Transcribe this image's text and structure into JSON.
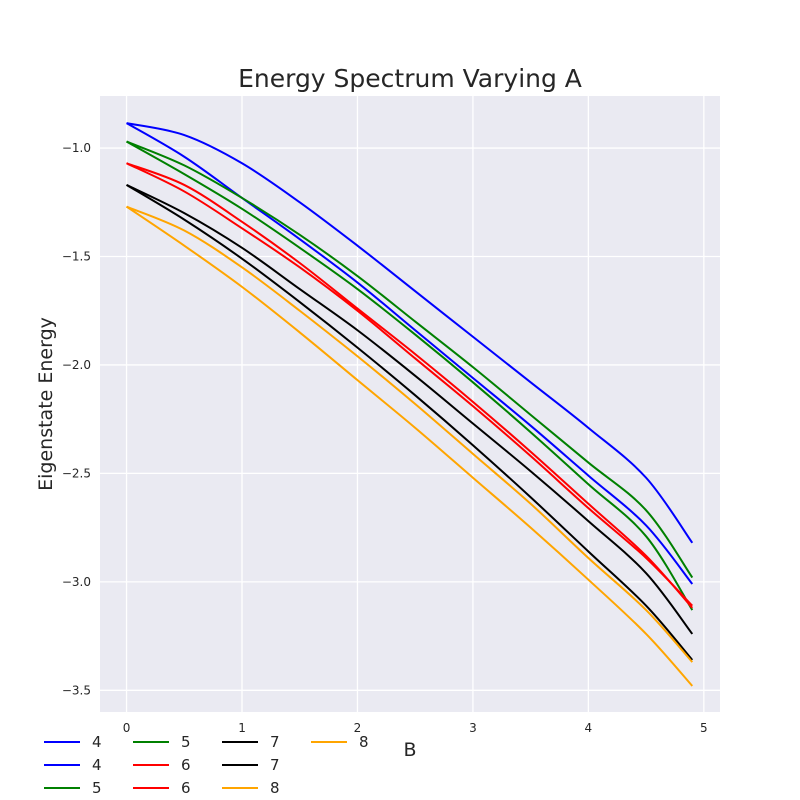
{
  "chart_data": {
    "type": "line",
    "title": "Energy Spectrum Varying A",
    "xlabel": "B",
    "ylabel": "Eigenstate Energy",
    "xlim": [
      -0.23,
      5.14
    ],
    "ylim": [
      -3.6,
      -0.76
    ],
    "xticks": [
      0,
      1,
      2,
      3,
      4,
      5
    ],
    "yticks": [
      -1.0,
      -1.5,
      -2.0,
      -2.5,
      -3.0,
      -3.5
    ],
    "xtick_labels": [
      "0",
      "1",
      "2",
      "3",
      "4",
      "5"
    ],
    "ytick_labels": [
      "−1.0",
      "−1.5",
      "−2.0",
      "−2.5",
      "−3.0",
      "−3.5"
    ],
    "grid": true,
    "legend_placement": "below-left",
    "legend_columns": 4,
    "x": [
      0,
      0.5,
      1,
      1.5,
      2,
      2.5,
      3,
      3.5,
      4,
      4.5,
      4.9
    ],
    "series": [
      {
        "name": "4",
        "color": "#0000ff",
        "values": [
          -0.885,
          -0.94,
          -1.07,
          -1.25,
          -1.45,
          -1.66,
          -1.87,
          -2.08,
          -2.29,
          -2.52,
          -2.82
        ]
      },
      {
        "name": "4",
        "color": "#0000ff",
        "values": [
          -0.885,
          -1.04,
          -1.23,
          -1.42,
          -1.62,
          -1.84,
          -2.06,
          -2.28,
          -2.51,
          -2.74,
          -3.01
        ]
      },
      {
        "name": "5",
        "color": "#008000",
        "values": [
          -0.97,
          -1.08,
          -1.23,
          -1.4,
          -1.59,
          -1.8,
          -2.01,
          -2.23,
          -2.45,
          -2.67,
          -2.98
        ]
      },
      {
        "name": "5",
        "color": "#008000",
        "values": [
          -0.97,
          -1.12,
          -1.28,
          -1.46,
          -1.65,
          -1.86,
          -2.08,
          -2.31,
          -2.55,
          -2.79,
          -3.13
        ]
      },
      {
        "name": "6",
        "color": "#ff0000",
        "values": [
          -1.07,
          -1.17,
          -1.34,
          -1.53,
          -1.74,
          -1.95,
          -2.17,
          -2.4,
          -2.64,
          -2.88,
          -3.12
        ]
      },
      {
        "name": "6",
        "color": "#ff0000",
        "values": [
          -1.07,
          -1.2,
          -1.37,
          -1.55,
          -1.75,
          -1.97,
          -2.19,
          -2.42,
          -2.66,
          -2.89,
          -3.11
        ]
      },
      {
        "name": "7",
        "color": "#000000",
        "values": [
          -1.17,
          -1.3,
          -1.46,
          -1.65,
          -1.84,
          -2.05,
          -2.27,
          -2.49,
          -2.72,
          -2.96,
          -3.24
        ]
      },
      {
        "name": "7",
        "color": "#000000",
        "values": [
          -1.17,
          -1.33,
          -1.51,
          -1.71,
          -1.92,
          -2.14,
          -2.37,
          -2.61,
          -2.86,
          -3.11,
          -3.36
        ]
      },
      {
        "name": "8",
        "color": "#ffa500",
        "values": [
          -1.27,
          -1.38,
          -1.55,
          -1.75,
          -1.96,
          -2.18,
          -2.41,
          -2.64,
          -2.89,
          -3.13,
          -3.37
        ]
      },
      {
        "name": "8",
        "color": "#ffa500",
        "values": [
          -1.27,
          -1.45,
          -1.64,
          -1.85,
          -2.07,
          -2.29,
          -2.52,
          -2.75,
          -2.99,
          -3.24,
          -3.48
        ]
      }
    ]
  }
}
